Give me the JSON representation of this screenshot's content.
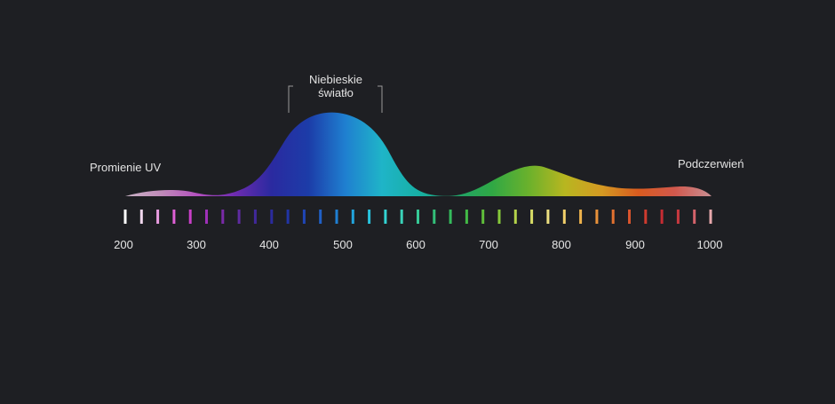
{
  "labels": {
    "uv": "Promienie UV",
    "blue_line1": "Niebieskie",
    "blue_line2": "światło",
    "ir": "Podczerwień"
  },
  "axis": {
    "ticks": [
      "200",
      "300",
      "400",
      "500",
      "600",
      "700",
      "800",
      "900",
      "1000"
    ]
  },
  "colors": {
    "background": "#1e1f23",
    "text": "#e2e2e2",
    "bracket": "#9a9a9a",
    "spectrum_stops": [
      "#c9b3c6",
      "#c08ab9",
      "#b34fbf",
      "#6d2bb0",
      "#2a2aa0",
      "#1c3ca8",
      "#1f7fd0",
      "#1fb4c8",
      "#17b0a5",
      "#1fa36b",
      "#2fa845",
      "#6ab12c",
      "#b8b620",
      "#d49a22",
      "#d85b1f",
      "#d1584d",
      "#c98f93"
    ]
  },
  "bar_colors": [
    "#ffffff",
    "#f2d8ef",
    "#e89ce0",
    "#df5fd5",
    "#c83fc7",
    "#9e30b8",
    "#7a2aa7",
    "#5e2ba0",
    "#40289a",
    "#2b2b9e",
    "#2134a6",
    "#1f45b5",
    "#2060c6",
    "#1f7fd3",
    "#22a4dc",
    "#28c2dc",
    "#33d3d3",
    "#3ad2b8",
    "#36c996",
    "#33c07a",
    "#35bb5c",
    "#42b946",
    "#5fbe3a",
    "#86c83a",
    "#b3d24a",
    "#d8dc66",
    "#ecdf80",
    "#f1cf6a",
    "#eeb24c",
    "#e8913a",
    "#e2712f",
    "#d8542d",
    "#cf3b2f",
    "#c62c33",
    "#c8383f",
    "#d4636a",
    "#e7a8ac"
  ]
}
